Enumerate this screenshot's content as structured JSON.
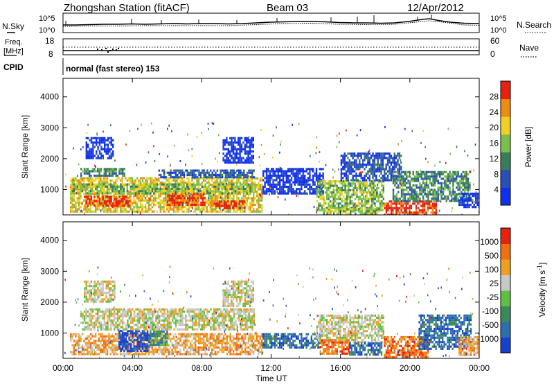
{
  "header": {
    "station_title": "Zhongshan Station (fitACF)",
    "beam": "Beam 03",
    "date": "12/Apr/2012"
  },
  "top_panels": {
    "nsky_label": "N.Sky",
    "nsearch_label": "N.Search",
    "noise_ticks_left": [
      "10^5",
      "10^0"
    ],
    "noise_ticks_right": [
      "10^5",
      "10^0"
    ],
    "freq_label_1": "Freq.",
    "freq_label_2": "[MHz]",
    "freq_ticks": [
      "18",
      "8"
    ],
    "nave_label": "Nave",
    "nave_ticks": [
      "60",
      "0"
    ],
    "cpid_label": "CPID",
    "cpid_text": "normal (fast stereo) 153"
  },
  "chart_data": [
    {
      "type": "heatmap",
      "name": "power",
      "ylabel": "Slant Range [km]",
      "ylim": [
        180,
        4600
      ],
      "yticks": [
        "1000",
        "2000",
        "3000",
        "4000"
      ],
      "xlim_hours": [
        0,
        24
      ],
      "colorbar_label": "Power [dB]",
      "colorbar_ticks": [
        "28",
        "24",
        "20",
        "16",
        "12",
        "8",
        "4"
      ],
      "colorbar_colors": [
        "#1030f0",
        "#2a4fb8",
        "#3a7d5a",
        "#7ac04a",
        "#f0d020",
        "#f08a10",
        "#e82010"
      ],
      "regions": [
        {
          "t0": 0.4,
          "t1": 11.5,
          "r0": 300,
          "r1": 1400,
          "level": 4
        },
        {
          "t0": 1.2,
          "t1": 3.8,
          "r0": 450,
          "r1": 800,
          "level": 6
        },
        {
          "t0": 6.0,
          "t1": 8.2,
          "r0": 500,
          "r1": 900,
          "level": 6
        },
        {
          "t0": 8.5,
          "t1": 10.5,
          "r0": 400,
          "r1": 650,
          "level": 6
        },
        {
          "t0": 0.5,
          "t1": 11.0,
          "r0": 900,
          "r1": 1200,
          "level": 3
        },
        {
          "t0": 1.0,
          "t1": 3.5,
          "r0": 1450,
          "r1": 1700,
          "level": 2
        },
        {
          "t0": 5.5,
          "t1": 11.0,
          "r0": 1400,
          "r1": 1650,
          "level": 1
        },
        {
          "t0": 1.3,
          "t1": 2.9,
          "r0": 2050,
          "r1": 2700,
          "level": 0
        },
        {
          "t0": 9.2,
          "t1": 11.0,
          "r0": 1900,
          "r1": 2700,
          "level": 0
        },
        {
          "t0": 11.5,
          "t1": 15.0,
          "r0": 900,
          "r1": 1700,
          "level": 0
        },
        {
          "t0": 14.6,
          "t1": 18.5,
          "r0": 350,
          "r1": 1300,
          "level": 3
        },
        {
          "t0": 15.0,
          "t1": 18.2,
          "r0": 200,
          "r1": 400,
          "level": 3
        },
        {
          "t0": 16.0,
          "t1": 19.5,
          "r0": 1300,
          "r1": 2200,
          "level": 1
        },
        {
          "t0": 18.5,
          "t1": 21.5,
          "r0": 200,
          "r1": 650,
          "level": 6
        },
        {
          "t0": 19.0,
          "t1": 23.5,
          "r0": 600,
          "r1": 1600,
          "level": 2
        },
        {
          "t0": 22.8,
          "t1": 24.0,
          "r0": 400,
          "r1": 900,
          "level": 0
        }
      ]
    },
    {
      "type": "heatmap",
      "name": "velocity",
      "ylabel": "Slant Range [km]",
      "ylim": [
        180,
        4600
      ],
      "yticks": [
        "1000",
        "2000",
        "3000",
        "4000"
      ],
      "xlim_hours": [
        0,
        24
      ],
      "xticks": [
        "00:00",
        "04:00",
        "08:00",
        "12:00",
        "16:00",
        "20:00",
        "00:00"
      ],
      "xlabel": "Time UT",
      "colorbar_label": "Velocity [m s",
      "colorbar_label_sup": "-1",
      "colorbar_ticks": [
        "1000",
        "500",
        "100",
        "25",
        "-25",
        "-100",
        "-500",
        "-1000"
      ],
      "colorbar_colors": [
        "#1840d0",
        "#2f6fb0",
        "#3a8a5a",
        "#62c040",
        "#c8c8c8",
        "#f0a020",
        "#f07010",
        "#e82010"
      ],
      "regions": [
        {
          "t0": 0.4,
          "t1": 11.5,
          "r0": 300,
          "r1": 1000,
          "level": 5
        },
        {
          "t0": 3.2,
          "t1": 5.0,
          "r0": 400,
          "r1": 1100,
          "level": 0
        },
        {
          "t0": 5.0,
          "t1": 6.0,
          "r0": 600,
          "r1": 1300,
          "level": 2
        },
        {
          "t0": 1.0,
          "t1": 11.0,
          "r0": 1100,
          "r1": 1800,
          "level": 4
        },
        {
          "t0": 1.2,
          "t1": 3.0,
          "r0": 2000,
          "r1": 2700,
          "level": 4
        },
        {
          "t0": 9.2,
          "t1": 11.0,
          "r0": 1900,
          "r1": 2700,
          "level": 4
        },
        {
          "t0": 11.5,
          "t1": 14.8,
          "r0": 500,
          "r1": 1000,
          "level": 1
        },
        {
          "t0": 14.6,
          "t1": 18.5,
          "r0": 700,
          "r1": 1600,
          "level": 4
        },
        {
          "t0": 14.8,
          "t1": 16.5,
          "r0": 300,
          "r1": 800,
          "level": 6
        },
        {
          "t0": 16.5,
          "t1": 18.4,
          "r0": 300,
          "r1": 700,
          "level": 1
        },
        {
          "t0": 18.5,
          "t1": 21.0,
          "r0": 200,
          "r1": 900,
          "level": 6
        },
        {
          "t0": 20.5,
          "t1": 23.5,
          "r0": 500,
          "r1": 1600,
          "level": 1
        },
        {
          "t0": 22.8,
          "t1": 24.0,
          "r0": 300,
          "r1": 900,
          "level": 5
        }
      ]
    }
  ]
}
